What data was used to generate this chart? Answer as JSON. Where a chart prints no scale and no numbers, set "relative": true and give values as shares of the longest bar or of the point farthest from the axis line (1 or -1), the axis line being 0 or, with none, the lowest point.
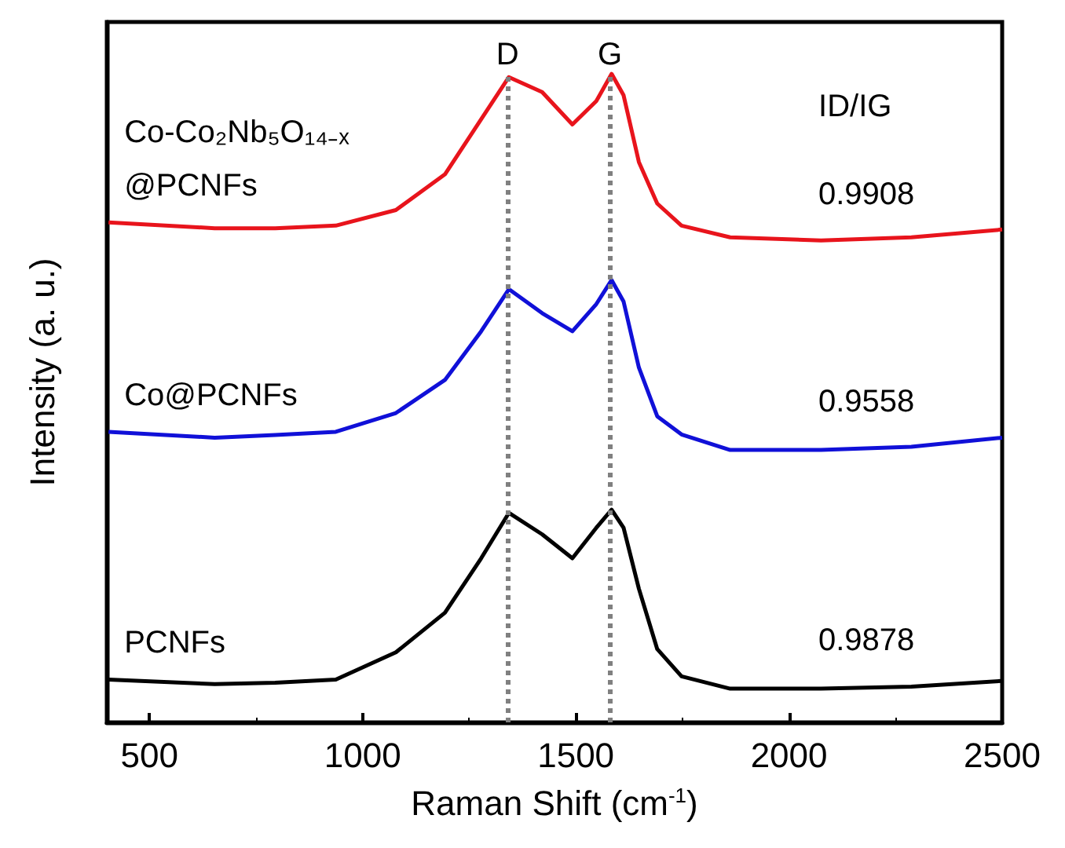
{
  "chart_data": {
    "type": "line",
    "relative": true,
    "xlabel": "Raman Shift (cm$^{-1}$)",
    "ylabel": "Intensity (a. u.)",
    "xlim": [
      400,
      2500
    ],
    "xticks": [
      500,
      1000,
      1500,
      2000,
      2500
    ],
    "marker": "none",
    "x": [
      404,
      653,
      795,
      937,
      1078,
      1193,
      1278,
      1343,
      1421,
      1492,
      1548,
      1584,
      1612,
      1648,
      1691,
      1748,
      1862,
      2075,
      2287,
      2500
    ],
    "series": [
      {
        "name": "Co-Co₂Nb₅O₁₄₋ₓ\n@PCNFs",
        "color": "#e8141c",
        "values": [
          0.771,
          0.762,
          0.762,
          0.766,
          0.79,
          0.845,
          0.93,
          0.995,
          0.972,
          0.922,
          0.958,
          1.0,
          0.967,
          0.864,
          0.8,
          0.766,
          0.748,
          0.743,
          0.748,
          0.76
        ]
      },
      {
        "name": "Co@PCNFs",
        "color": "#1010d8",
        "values": [
          0.448,
          0.439,
          0.443,
          0.448,
          0.477,
          0.528,
          0.603,
          0.668,
          0.631,
          0.603,
          0.645,
          0.682,
          0.649,
          0.547,
          0.472,
          0.444,
          0.42,
          0.42,
          0.425,
          0.439
        ]
      },
      {
        "name": "PCNFs",
        "color": "#000000",
        "values": [
          0.066,
          0.059,
          0.061,
          0.066,
          0.108,
          0.169,
          0.253,
          0.323,
          0.29,
          0.253,
          0.3,
          0.328,
          0.3,
          0.206,
          0.113,
          0.071,
          0.052,
          0.052,
          0.055,
          0.064
        ]
      }
    ],
    "ref_lines": [
      {
        "axis": "x",
        "value": 1340,
        "label": "D",
        "color": "#808080",
        "line_style": "dotted"
      },
      {
        "axis": "x",
        "value": 1580,
        "label": "G",
        "color": "#808080",
        "line_style": "dotted"
      }
    ],
    "annotations": [
      "ID/IG",
      "0.9908",
      "0.9558",
      "0.9878"
    ]
  }
}
